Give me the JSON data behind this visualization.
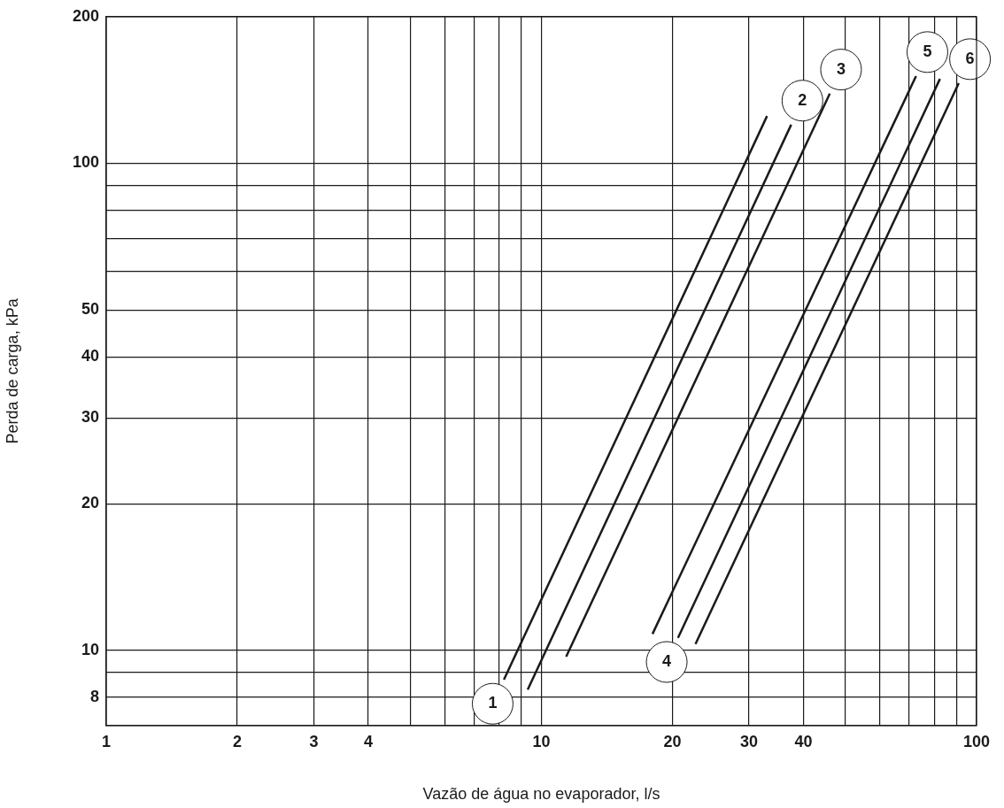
{
  "chart_data": {
    "type": "line",
    "xlabel": "Vazão de água no evaporador, l/s",
    "ylabel": "Perda de carga, kPa",
    "log": "xy",
    "grid": true,
    "marker": "none",
    "line_style": "solid",
    "xlim": [
      1,
      100
    ],
    "ylim": [
      7,
      200
    ],
    "xticks": [
      1,
      2,
      3,
      4,
      {
        "value": 5,
        "label": null
      },
      {
        "value": 6,
        "label": null
      },
      {
        "value": 7,
        "label": null
      },
      {
        "value": 8,
        "label": null
      },
      {
        "value": 9,
        "label": null
      },
      10,
      20,
      30,
      40,
      {
        "value": 50,
        "label": null
      },
      {
        "value": 60,
        "label": null
      },
      {
        "value": 70,
        "label": null
      },
      {
        "value": 80,
        "label": null
      },
      {
        "value": 90,
        "label": null
      },
      100
    ],
    "yticks": [
      8,
      {
        "value": 9,
        "label": null
      },
      10,
      20,
      30,
      40,
      50,
      {
        "value": 60,
        "label": null
      },
      {
        "value": 70,
        "label": null
      },
      {
        "value": 80,
        "label": null
      },
      {
        "value": 90,
        "label": null
      },
      100,
      200
    ],
    "series": [
      {
        "color": "#1a1a1a",
        "x": [
          8.2,
          33
        ],
        "values": [
          8.7,
          125
        ]
      },
      {
        "color": "#1a1a1a",
        "x": [
          9.3,
          37.5
        ],
        "values": [
          8.3,
          120
        ]
      },
      {
        "color": "#1a1a1a",
        "x": [
          11.4,
          46
        ],
        "values": [
          9.7,
          139
        ]
      },
      {
        "color": "#1a1a1a",
        "x": [
          18,
          72.6
        ],
        "values": [
          10.8,
          151
        ]
      },
      {
        "color": "#1a1a1a",
        "x": [
          20.6,
          82.4
        ],
        "values": [
          10.6,
          149
        ]
      },
      {
        "color": "#1a1a1a",
        "x": [
          22.6,
          91
        ],
        "values": [
          10.3,
          146
        ]
      }
    ],
    "annotations": [
      {
        "text": "1",
        "x": 8.2,
        "y": 8.7
      },
      {
        "text": "2",
        "x": 37.5,
        "y": 120
      },
      {
        "text": "3",
        "x": 46,
        "y": 139
      },
      {
        "text": "4",
        "x": 20.6,
        "y": 10.6
      },
      {
        "text": "5",
        "x": 72.6,
        "y": 151
      },
      {
        "text": "6",
        "x": 91,
        "y": 146
      }
    ]
  }
}
